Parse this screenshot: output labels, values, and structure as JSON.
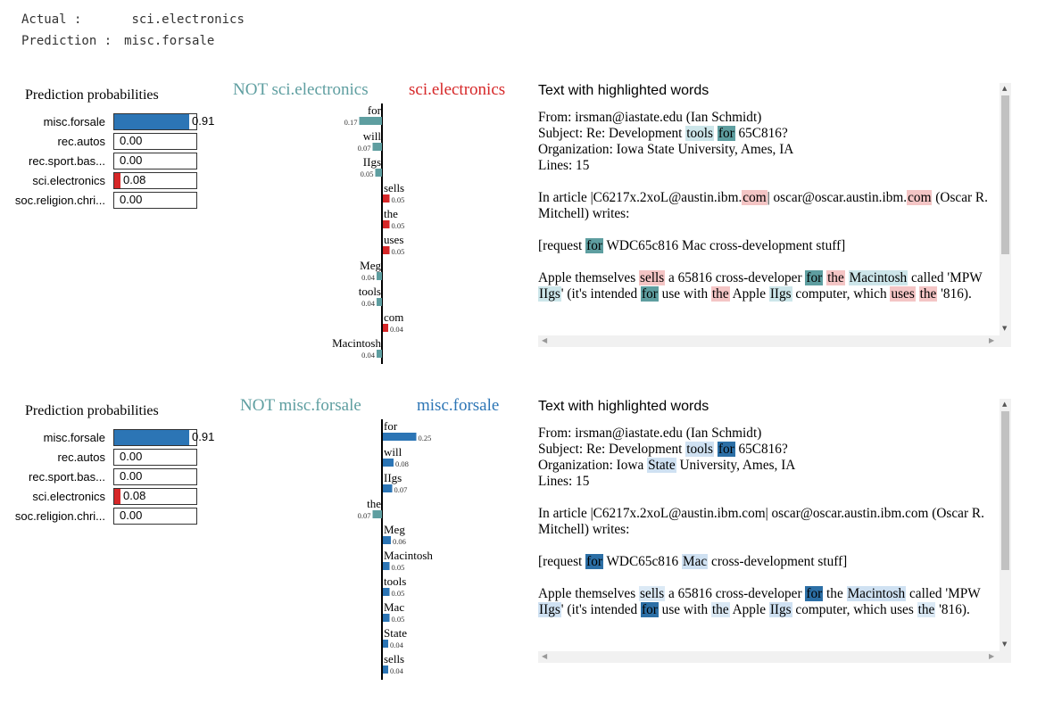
{
  "header": {
    "actual_label": "Actual :",
    "actual_value": "sci.electronics",
    "prediction_label": "Prediction :",
    "prediction_value": "misc.forsale"
  },
  "probabilities": {
    "title": "Prediction probabilities",
    "rows": [
      {
        "label": "misc.forsale",
        "value": 0.91,
        "text": "0.91",
        "color": "#2c75b5"
      },
      {
        "label": "rec.autos",
        "value": 0.0,
        "text": "0.00",
        "color": "#2c75b5"
      },
      {
        "label": "rec.sport.bas...",
        "value": 0.0,
        "text": "0.00",
        "color": "#2c75b5"
      },
      {
        "label": "sci.electronics",
        "value": 0.08,
        "text": "0.08",
        "color": "#d62728"
      },
      {
        "label": "soc.religion.chri...",
        "value": 0.0,
        "text": "0.00",
        "color": "#2c75b5"
      }
    ]
  },
  "text_title": "Text with highlighted words",
  "chart_data": [
    {
      "type": "bar",
      "class_label": "sci.electronics",
      "not_label": "NOT sci.electronics",
      "positive_color": "#d62728",
      "negative_color": "#5e9ea0",
      "features": [
        {
          "word": "for",
          "weight": -0.17,
          "label": "0.17"
        },
        {
          "word": "will",
          "weight": -0.07,
          "label": "0.07"
        },
        {
          "word": "IIgs",
          "weight": -0.05,
          "label": "0.05"
        },
        {
          "word": "sells",
          "weight": 0.05,
          "label": "0.05"
        },
        {
          "word": "the",
          "weight": 0.05,
          "label": "0.05"
        },
        {
          "word": "uses",
          "weight": 0.05,
          "label": "0.05"
        },
        {
          "word": "Meg",
          "weight": -0.04,
          "label": "0.04"
        },
        {
          "word": "tools",
          "weight": -0.04,
          "label": "0.04"
        },
        {
          "word": "com",
          "weight": 0.04,
          "label": "0.04"
        },
        {
          "word": "Macintosh",
          "weight": -0.04,
          "label": "0.04"
        }
      ]
    },
    {
      "type": "bar",
      "class_label": "misc.forsale",
      "not_label": "NOT misc.forsale",
      "positive_color": "#2c75b5",
      "negative_color": "#5e9ea0",
      "features": [
        {
          "word": "for",
          "weight": 0.25,
          "label": "0.25"
        },
        {
          "word": "will",
          "weight": 0.08,
          "label": "0.08"
        },
        {
          "word": "IIgs",
          "weight": 0.07,
          "label": "0.07"
        },
        {
          "word": "the",
          "weight": -0.07,
          "label": "0.07"
        },
        {
          "word": "Meg",
          "weight": 0.06,
          "label": "0.06"
        },
        {
          "word": "Macintosh",
          "weight": 0.05,
          "label": "0.05"
        },
        {
          "word": "tools",
          "weight": 0.05,
          "label": "0.05"
        },
        {
          "word": "Mac",
          "weight": 0.05,
          "label": "0.05"
        },
        {
          "word": "State",
          "weight": 0.04,
          "label": "0.04"
        },
        {
          "word": "sells",
          "weight": 0.04,
          "label": "0.04"
        }
      ]
    }
  ],
  "text_panels": [
    {
      "paragraphs": [
        [
          [
            "From: irsman@iastate.edu (Ian Schmidt)"
          ]
        ],
        [
          [
            "Subject: Re: Development "
          ],
          [
            "tools",
            "#cde6ea"
          ],
          [
            " "
          ],
          [
            "for",
            "#5e9ea0"
          ],
          [
            " 65C816?"
          ]
        ],
        [
          [
            "Organization: Iowa State University, Ames, IA"
          ]
        ],
        [
          [
            "Lines: 15"
          ]
        ],
        [],
        [
          [
            "In article |C6217x.2xoL@austin.ibm."
          ],
          [
            "com",
            "#f4c5c5"
          ],
          [
            "| oscar@oscar.austin.ibm."
          ],
          [
            "com",
            "#f4c5c5"
          ],
          [
            " (Oscar R. Mitchell) writes:"
          ]
        ],
        [],
        [
          [
            "[request "
          ],
          [
            "for",
            "#5e9ea0"
          ],
          [
            " WDC65c816 Mac cross-development stuff]"
          ]
        ],
        [],
        [
          [
            "Apple themselves "
          ],
          [
            "sells",
            "#f4c5c5"
          ],
          [
            " a 65816 cross-developer "
          ],
          [
            "for",
            "#5e9ea0"
          ],
          [
            " "
          ],
          [
            "the",
            "#f4c5c5"
          ],
          [
            " "
          ],
          [
            "Macintosh",
            "#cde6ea"
          ],
          [
            " called 'MPW "
          ],
          [
            "IIgs",
            "#cde6ea"
          ],
          [
            "' (it's intended "
          ],
          [
            "for",
            "#5e9ea0"
          ],
          [
            " use with "
          ],
          [
            "the",
            "#f4c5c5"
          ],
          [
            " Apple "
          ],
          [
            "IIgs",
            "#cde6ea"
          ],
          [
            " computer, which "
          ],
          [
            "uses",
            "#f4c5c5"
          ],
          [
            " "
          ],
          [
            "the",
            "#f4c5c5"
          ],
          [
            " '816)."
          ]
        ]
      ]
    },
    {
      "paragraphs": [
        [
          [
            "From: irsman@iastate.edu (Ian Schmidt)"
          ]
        ],
        [
          [
            "Subject: Re: Development "
          ],
          [
            "tools",
            "#cfe1f2"
          ],
          [
            " "
          ],
          [
            "for",
            "#2c6fa6"
          ],
          [
            " 65C816?"
          ]
        ],
        [
          [
            "Organization: Iowa "
          ],
          [
            "State",
            "#cfe1f2"
          ],
          [
            " University, Ames, IA"
          ]
        ],
        [
          [
            "Lines: 15"
          ]
        ],
        [],
        [
          [
            "In article |C6217x.2xoL@austin.ibm.com| oscar@oscar.austin.ibm.com (Oscar R. Mitchell) writes:"
          ]
        ],
        [],
        [
          [
            "[request "
          ],
          [
            "for",
            "#2c6fa6"
          ],
          [
            " WDC65c816 "
          ],
          [
            "Mac",
            "#cfe1f2"
          ],
          [
            " cross-development stuff]"
          ]
        ],
        [],
        [
          [
            "Apple themselves "
          ],
          [
            "sells",
            "#dbe9f5"
          ],
          [
            " a 65816 cross-developer "
          ],
          [
            "for",
            "#2c6fa6"
          ],
          [
            " the "
          ],
          [
            "Macintosh",
            "#cfe1f2"
          ],
          [
            " called 'MPW "
          ],
          [
            "IIgs",
            "#cfe1f2"
          ],
          [
            "' (it's intended "
          ],
          [
            "for",
            "#2c6fa6"
          ],
          [
            " use with "
          ],
          [
            "the",
            "#dbe9f5"
          ],
          [
            " Apple "
          ],
          [
            "IIgs",
            "#cfe1f2"
          ],
          [
            " computer, which uses "
          ],
          [
            "the",
            "#dbe9f5"
          ],
          [
            " '816)."
          ]
        ]
      ]
    }
  ]
}
